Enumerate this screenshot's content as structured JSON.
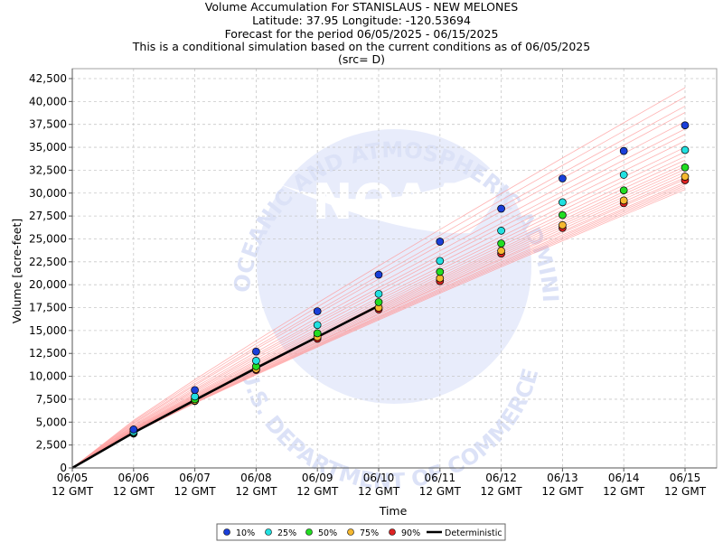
{
  "chart_data": {
    "type": "scatter",
    "title_lines": [
      "Volume Accumulation For STANISLAUS - NEW MELONES",
      "Latitude: 37.95 Longitude: -120.53694",
      "Forecast for the period 06/05/2025 - 06/15/2025",
      "This is a conditional simulation based on the current conditions as of 06/05/2025",
      "(src= D)"
    ],
    "xlabel": "Time",
    "ylabel": "Volume [acre-feet]",
    "x_tick_labels": [
      [
        "06/05",
        "12 GMT"
      ],
      [
        "06/06",
        "12 GMT"
      ],
      [
        "06/07",
        "12 GMT"
      ],
      [
        "06/08",
        "12 GMT"
      ],
      [
        "06/09",
        "12 GMT"
      ],
      [
        "06/10",
        "12 GMT"
      ],
      [
        "06/11",
        "12 GMT"
      ],
      [
        "06/12",
        "12 GMT"
      ],
      [
        "06/13",
        "12 GMT"
      ],
      [
        "06/14",
        "12 GMT"
      ],
      [
        "06/15",
        "12 GMT"
      ]
    ],
    "ylim": [
      0,
      42500
    ],
    "y_ticks": [
      0,
      2500,
      5000,
      7500,
      10000,
      12500,
      15000,
      17500,
      20000,
      22500,
      25000,
      27500,
      30000,
      32500,
      35000,
      37500,
      40000,
      42500
    ],
    "y_tick_labels": [
      "0",
      "2,500",
      "5,000",
      "7,500",
      "10,000",
      "12,500",
      "15,000",
      "17,500",
      "20,000",
      "22,500",
      "25,000",
      "27,500",
      "30,000",
      "32,500",
      "35,000",
      "37,500",
      "40,000",
      "42,500"
    ],
    "grid": true,
    "legend_position": "bottom-center",
    "series": [
      {
        "name": "10%",
        "color": "#1a3fd9",
        "values": [
          null,
          4200,
          8500,
          12700,
          17100,
          21100,
          24700,
          28300,
          31600,
          34600,
          37400
        ]
      },
      {
        "name": "25%",
        "color": "#22e0e0",
        "values": [
          null,
          3950,
          7800,
          11700,
          15600,
          19000,
          22600,
          25900,
          29000,
          32000,
          34700
        ]
      },
      {
        "name": "50%",
        "color": "#22dd22",
        "values": [
          null,
          3850,
          7500,
          11100,
          14700,
          18100,
          21400,
          24500,
          27600,
          30300,
          32800
        ]
      },
      {
        "name": "75%",
        "color": "#f5b830",
        "values": [
          null,
          3800,
          7350,
          10800,
          14300,
          17500,
          20700,
          23700,
          26500,
          29200,
          31800
        ]
      },
      {
        "name": "90%",
        "color": "#dd2222",
        "values": [
          null,
          3750,
          7300,
          10700,
          14100,
          17300,
          20400,
          23400,
          26200,
          28900,
          31400
        ]
      }
    ],
    "deterministic": {
      "name": "Deterministic",
      "color": "#000000",
      "values": [
        0,
        3850,
        7400,
        10900,
        14300,
        17700
      ]
    },
    "ensemble_traces": {
      "color": "#ff9999",
      "end_values": [
        41500,
        40500,
        39500,
        38800,
        37800,
        37000,
        36400,
        35700,
        35000,
        34500,
        34000,
        33600,
        33200,
        32900,
        32600,
        32300,
        32000,
        31700,
        31500,
        31200,
        31000,
        30800,
        30600,
        30400
      ]
    },
    "watermark": {
      "logo_text": "NOAA",
      "ring_top": "NATIONAL OCEANIC AND ATMOSPHERIC ADMINISTRATION",
      "ring_bottom": "U.S. DEPARTMENT OF COMMERCE"
    }
  }
}
